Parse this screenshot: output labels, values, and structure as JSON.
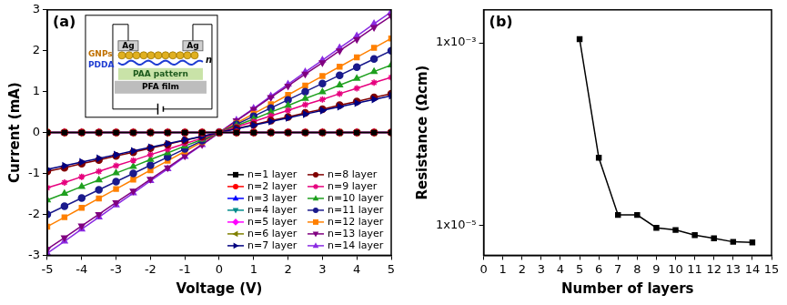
{
  "chart_data": [
    {
      "type": "line",
      "panel": "(a)",
      "x_label": "Voltage (V)",
      "y_label": "Current (mA)",
      "x": [
        -5,
        -4.5,
        -4,
        -3.5,
        -3,
        -2.5,
        -2,
        -1.5,
        -1,
        -0.5,
        0,
        0.5,
        1,
        1.5,
        2,
        2.5,
        3,
        3.5,
        4,
        4.5,
        5
      ],
      "series": [
        {
          "name": "n=1 layer",
          "color": "#000000",
          "marker": "square",
          "values": [
            0,
            0,
            0,
            0,
            0,
            0,
            0,
            0,
            0,
            0,
            0,
            0,
            0,
            0,
            0,
            0,
            0,
            0,
            0,
            0,
            0
          ]
        },
        {
          "name": "n=2 layer",
          "color": "#ff0000",
          "marker": "circle",
          "values": [
            0,
            0,
            0,
            0,
            0,
            0,
            0,
            0,
            0,
            0,
            0,
            0,
            0,
            0,
            0,
            0,
            0,
            0,
            0,
            0,
            0
          ]
        },
        {
          "name": "n=3 layer",
          "color": "#0000ff",
          "marker": "triangle",
          "values": [
            0,
            0,
            0,
            0,
            0,
            0,
            0,
            0,
            0,
            0,
            0,
            0,
            0,
            0,
            0,
            0,
            0,
            0,
            0,
            0,
            0
          ]
        },
        {
          "name": "n=4 layer",
          "color": "#008b8b",
          "marker": "triangle_down",
          "values": [
            0,
            0,
            0,
            0,
            0,
            0,
            0,
            0,
            0,
            0,
            0,
            0,
            0,
            0,
            0,
            0,
            0,
            0,
            0,
            0,
            0
          ]
        },
        {
          "name": "n=5 layer",
          "color": "#ff00ff",
          "marker": "diamond",
          "values": [
            0,
            0,
            0,
            0,
            0,
            0,
            0,
            0,
            0,
            0,
            0,
            0,
            0,
            0,
            0,
            0,
            0,
            0,
            0,
            0,
            0
          ]
        },
        {
          "name": "n=6 layer",
          "color": "#808000",
          "marker": "triangle_left",
          "values": [
            0,
            0,
            0,
            0,
            0,
            0,
            0,
            0,
            0,
            0,
            0,
            0,
            0,
            0,
            0,
            0,
            0,
            0,
            0,
            0,
            0
          ]
        },
        {
          "name": "n=7 layer",
          "color": "#000080",
          "marker": "triangle_right",
          "values": [
            -0.9,
            -0.81,
            -0.72,
            -0.63,
            -0.54,
            -0.45,
            -0.36,
            -0.27,
            -0.18,
            -0.09,
            0,
            0.09,
            0.18,
            0.27,
            0.36,
            0.45,
            0.54,
            0.63,
            0.72,
            0.81,
            0.9
          ]
        },
        {
          "name": "n=8 layer",
          "color": "#800000",
          "marker": "circle",
          "values": [
            -0.95,
            -0.86,
            -0.76,
            -0.67,
            -0.57,
            -0.48,
            -0.38,
            -0.29,
            -0.19,
            -0.1,
            0,
            0.1,
            0.19,
            0.29,
            0.38,
            0.48,
            0.57,
            0.67,
            0.76,
            0.86,
            0.95
          ]
        },
        {
          "name": "n=9 layer",
          "color": "#e6007e",
          "marker": "star",
          "values": [
            -1.35,
            -1.22,
            -1.08,
            -0.95,
            -0.81,
            -0.68,
            -0.54,
            -0.41,
            -0.27,
            -0.14,
            0,
            0.14,
            0.27,
            0.41,
            0.54,
            0.68,
            0.81,
            0.95,
            1.08,
            1.22,
            1.35
          ]
        },
        {
          "name": "n=10 layer",
          "color": "#1fa01f",
          "marker": "triangle",
          "values": [
            -1.65,
            -1.49,
            -1.32,
            -1.16,
            -0.99,
            -0.83,
            -0.66,
            -0.5,
            -0.33,
            -0.17,
            0,
            0.17,
            0.33,
            0.5,
            0.66,
            0.83,
            0.99,
            1.16,
            1.32,
            1.49,
            1.65
          ]
        },
        {
          "name": "n=11 layer",
          "color": "#1a1a8c",
          "marker": "circle",
          "values": [
            -2,
            -1.8,
            -1.6,
            -1.4,
            -1.2,
            -1,
            -0.8,
            -0.6,
            -0.4,
            -0.2,
            0,
            0.2,
            0.4,
            0.6,
            0.8,
            1,
            1.2,
            1.4,
            1.6,
            1.8,
            2
          ]
        },
        {
          "name": "n=12 layer",
          "color": "#ff8000",
          "marker": "square",
          "values": [
            -2.3,
            -2.07,
            -1.84,
            -1.61,
            -1.38,
            -1.15,
            -0.92,
            -0.69,
            -0.46,
            -0.23,
            0,
            0.23,
            0.46,
            0.69,
            0.92,
            1.15,
            1.38,
            1.61,
            1.84,
            2.07,
            2.3
          ]
        },
        {
          "name": "n=13 layer",
          "color": "#800080",
          "marker": "triangle_down",
          "values": [
            -2.85,
            -2.57,
            -2.28,
            -2,
            -1.71,
            -1.43,
            -1.14,
            -0.86,
            -0.57,
            -0.29,
            0,
            0.29,
            0.57,
            0.86,
            1.14,
            1.43,
            1.71,
            2,
            2.28,
            2.57,
            2.85
          ]
        },
        {
          "name": "n=14 layer",
          "color": "#8a2be2",
          "marker": "triangle",
          "values": [
            -2.95,
            -2.66,
            -2.36,
            -2.07,
            -1.77,
            -1.48,
            -1.18,
            -0.89,
            -0.59,
            -0.3,
            0,
            0.3,
            0.59,
            0.89,
            1.18,
            1.48,
            1.77,
            2.07,
            2.36,
            2.66,
            2.95
          ]
        }
      ],
      "xlim": [
        -5,
        5
      ],
      "xticks": [
        -5,
        -4,
        -3,
        -2,
        -1,
        0,
        1,
        2,
        3,
        4,
        5
      ],
      "ylim": [
        -3,
        3
      ],
      "yticks": [
        -3,
        -2,
        -1,
        0,
        1,
        2,
        3
      ],
      "grid": false,
      "legend": "lower right"
    },
    {
      "type": "line",
      "panel": "(b)",
      "x_label": "Number of layers",
      "y_label": "Resistance (Ωcm)",
      "x": [
        5,
        6,
        7,
        8,
        9,
        10,
        11,
        12,
        13,
        14
      ],
      "values": [
        0.0011,
        5.5e-05,
        1.3e-05,
        1.3e-05,
        9.4e-06,
        8.9e-06,
        7.8e-06,
        7.2e-06,
        6.6e-06,
        6.5e-06
      ],
      "color": "#000000",
      "marker": "square",
      "xlim": [
        0,
        15
      ],
      "xticks": [
        0,
        1,
        2,
        3,
        4,
        5,
        6,
        7,
        8,
        9,
        10,
        11,
        12,
        13,
        14,
        15
      ],
      "ylim": [
        4.7e-06,
        0.0023
      ],
      "yticks": [
        {
          "value": 0.001,
          "label": "1x10⁻³"
        },
        {
          "value": 1e-05,
          "label": "1x10⁻⁵"
        }
      ],
      "log": "y",
      "grid": false
    }
  ],
  "inset": {
    "electrode": "Ag",
    "particles": "GNPs",
    "polymer": "PDDA",
    "layers": "n",
    "pattern": "PAA pattern",
    "film": "PFA film"
  }
}
